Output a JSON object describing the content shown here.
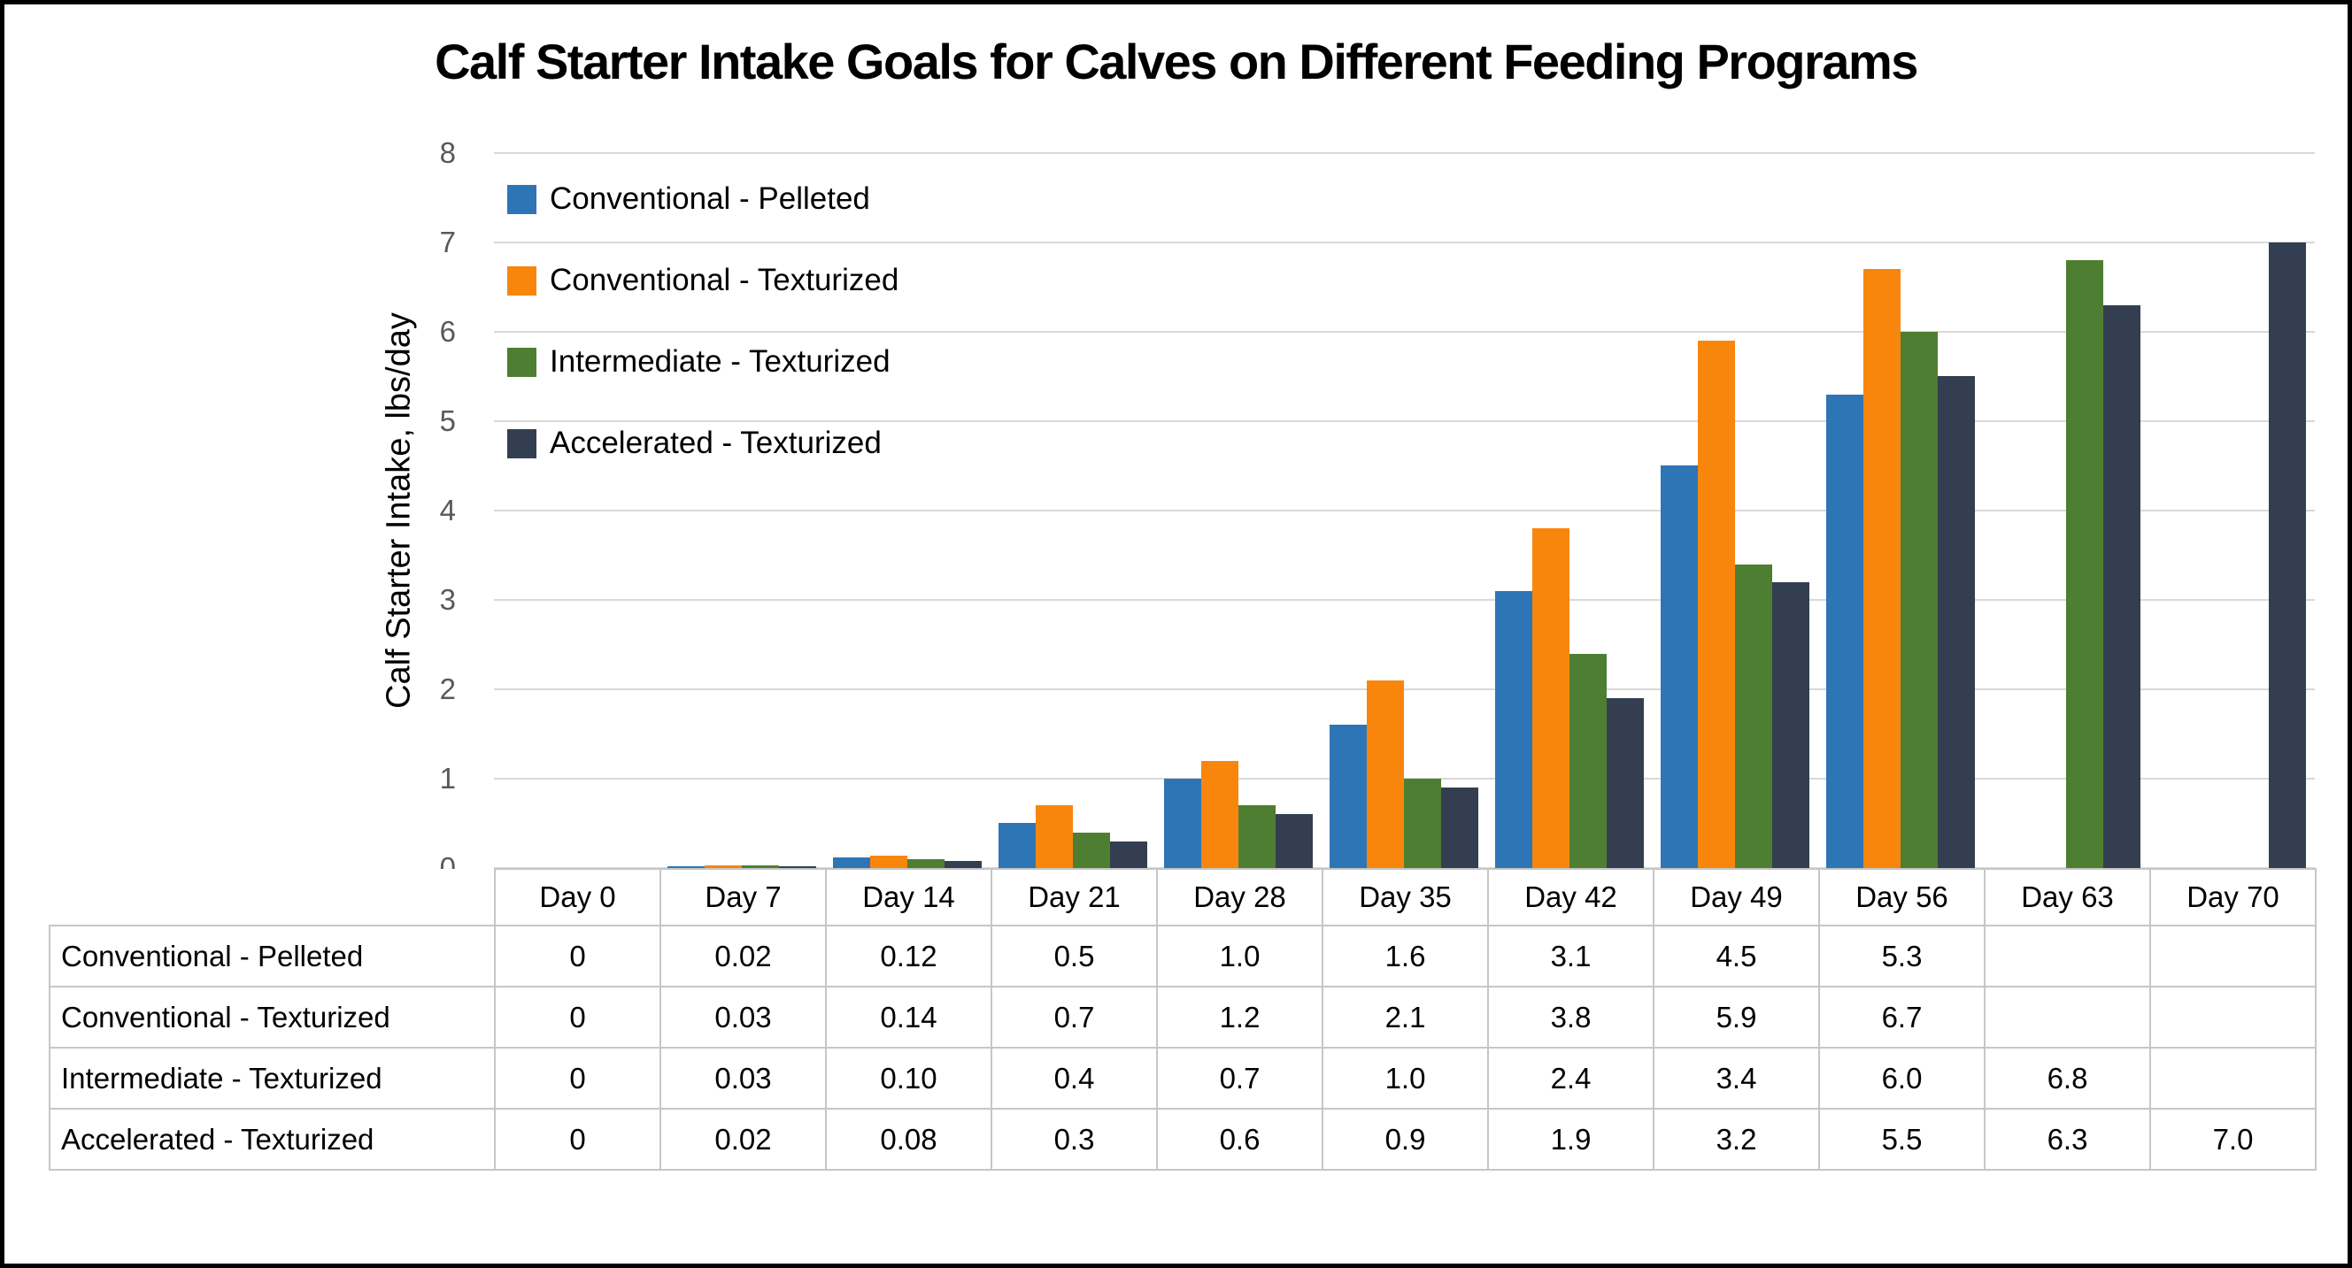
{
  "title": "Calf Starter Intake Goals for Calves on Different Feeding Programs",
  "y_axis": {
    "label": "Calf Starter Intake, lbs/day",
    "ticks": [
      0,
      1,
      2,
      3,
      4,
      5,
      6,
      7,
      8
    ]
  },
  "chart_data": {
    "type": "bar",
    "title": "Calf Starter Intake Goals for Calves on Different Feeding Programs",
    "xlabel": "",
    "ylabel": "Calf Starter Intake, lbs/day",
    "ylim": [
      0,
      8
    ],
    "grid": true,
    "legend_position": "top-left-inside",
    "categories": [
      "Day 0",
      "Day 7",
      "Day 14",
      "Day 21",
      "Day 28",
      "Day 35",
      "Day 42",
      "Day 49",
      "Day 56",
      "Day 63",
      "Day 70"
    ],
    "series": [
      {
        "name": "Conventional - Pelleted",
        "color": "#2E75B6",
        "values": [
          0,
          0.02,
          0.12,
          0.5,
          1.0,
          1.6,
          3.1,
          4.5,
          5.3,
          null,
          null
        ]
      },
      {
        "name": "Conventional - Texturized",
        "color": "#F8860D",
        "values": [
          0,
          0.03,
          0.14,
          0.7,
          1.2,
          2.1,
          3.8,
          5.9,
          6.7,
          null,
          null
        ]
      },
      {
        "name": "Intermediate - Texturized",
        "color": "#4E7E32",
        "values": [
          0,
          0.03,
          0.1,
          0.4,
          0.7,
          1.0,
          2.4,
          3.4,
          6.0,
          6.8,
          null
        ]
      },
      {
        "name": "Accelerated - Texturized",
        "color": "#333F50",
        "values": [
          0,
          0.02,
          0.08,
          0.3,
          0.6,
          0.9,
          1.9,
          3.2,
          5.5,
          6.3,
          7.0
        ]
      }
    ]
  },
  "table": {
    "columns": [
      "Day 0",
      "Day 7",
      "Day 14",
      "Day 21",
      "Day 28",
      "Day 35",
      "Day 42",
      "Day 49",
      "Day 56",
      "Day 63",
      "Day 70"
    ],
    "rows": [
      {
        "label": "Conventional - Pelleted",
        "values": [
          "0",
          "0.02",
          "0.12",
          "0.5",
          "1.0",
          "1.6",
          "3.1",
          "4.5",
          "5.3",
          "",
          ""
        ]
      },
      {
        "label": "Conventional - Texturized",
        "values": [
          "0",
          "0.03",
          "0.14",
          "0.7",
          "1.2",
          "2.1",
          "3.8",
          "5.9",
          "6.7",
          "",
          ""
        ]
      },
      {
        "label": "Intermediate - Texturized",
        "values": [
          "0",
          "0.03",
          "0.10",
          "0.4",
          "0.7",
          "1.0",
          "2.4",
          "3.4",
          "6.0",
          "6.8",
          ""
        ]
      },
      {
        "label": "Accelerated - Texturized",
        "values": [
          "0",
          "0.02",
          "0.08",
          "0.3",
          "0.6",
          "0.9",
          "1.9",
          "3.2",
          "5.5",
          "6.3",
          "7.0"
        ]
      }
    ]
  },
  "colors": {
    "gridline": "#D9D9D9",
    "table_border": "#C6C6C6",
    "tick_label": "#595959",
    "frame_border": "#000000"
  }
}
